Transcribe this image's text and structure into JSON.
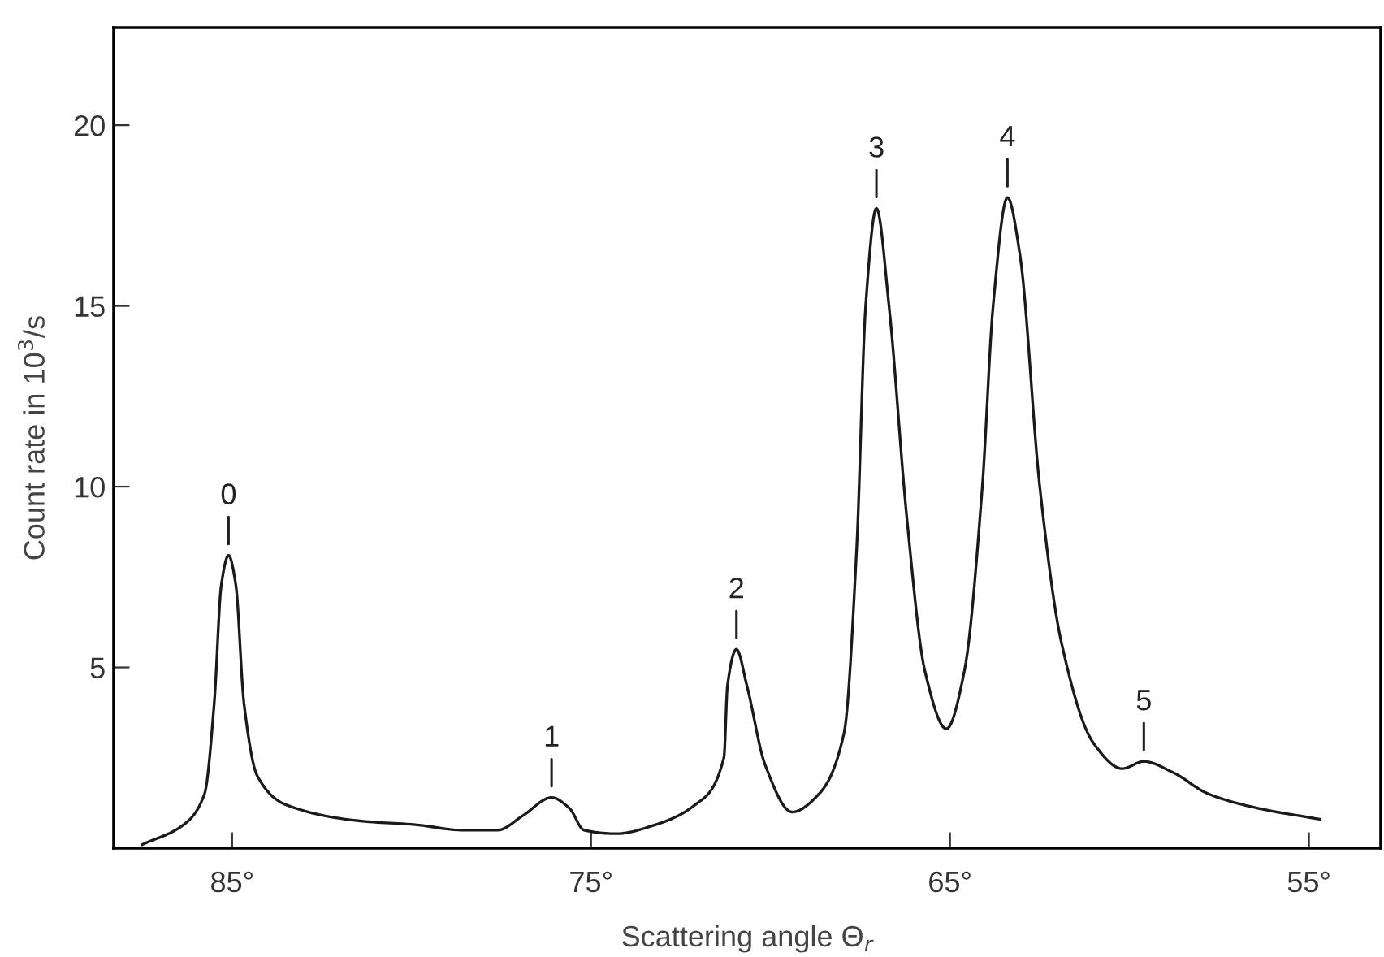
{
  "chart_data": {
    "type": "line",
    "xlabel": "Scattering angle Θ$_{r}$",
    "ylabel": "Count rate in 10$^{3}$/s",
    "x": [
      87.5,
      86.35,
      85.77,
      85.5,
      85.3,
      85.1,
      84.9,
      84.67,
      84.3,
      83.5,
      81.3,
      79.9,
      78.6,
      77.6,
      76.9,
      76.1,
      75.6,
      75.2,
      74.3,
      73.2,
      72.1,
      71.3,
      71.2,
      70.95,
      70.66,
      70.15,
      69.4,
      68.65,
      67.95,
      67.6,
      67.35,
      67.05,
      66.7,
      66.2,
      65.7,
      65.1,
      64.6,
      64.1,
      63.8,
      63.4,
      63.05,
      62.5,
      61.9,
      61.0,
      60.2,
      59.6,
      58.8,
      57.8,
      56.4,
      54.7
    ],
    "series": [
      {
        "color": "#1a1a1a",
        "values": [
          0.1,
          0.65,
          1.5,
          4.0,
          7.3,
          8.1,
          7.3,
          4.0,
          2.0,
          1.2,
          0.74,
          0.65,
          0.5,
          0.5,
          0.9,
          1.4,
          1.1,
          0.5,
          0.4,
          0.65,
          1.2,
          2.5,
          4.5,
          5.5,
          4.5,
          2.3,
          1.0,
          1.5,
          3.2,
          8.3,
          15.0,
          17.7,
          15.0,
          9.1,
          4.9,
          3.3,
          4.9,
          10.0,
          15.0,
          18.0,
          16.4,
          10.0,
          5.7,
          2.9,
          2.2,
          2.4,
          2.1,
          1.5,
          1.1,
          0.8
        ]
      }
    ],
    "xlim": [
      88.3,
      53.0
    ],
    "ylim": [
      0,
      22.7
    ],
    "xticks": [
      {
        "value": 85,
        "label": "85°"
      },
      {
        "value": 75,
        "label": "75°"
      },
      {
        "value": 65,
        "label": "65°"
      },
      {
        "value": 55,
        "label": "55°"
      }
    ],
    "yticks": [
      5,
      10,
      15,
      20
    ],
    "grid": false,
    "marker": "none",
    "line_style": "solid",
    "annotations": [
      {
        "text": "0",
        "x": 85.1,
        "y": 8.1
      },
      {
        "text": "1",
        "x": 76.1,
        "y": 1.4
      },
      {
        "text": "2",
        "x": 70.95,
        "y": 5.5
      },
      {
        "text": "3",
        "x": 67.05,
        "y": 17.7
      },
      {
        "text": "4",
        "x": 63.4,
        "y": 18.0
      },
      {
        "text": "5",
        "x": 59.6,
        "y": 2.4
      }
    ]
  }
}
